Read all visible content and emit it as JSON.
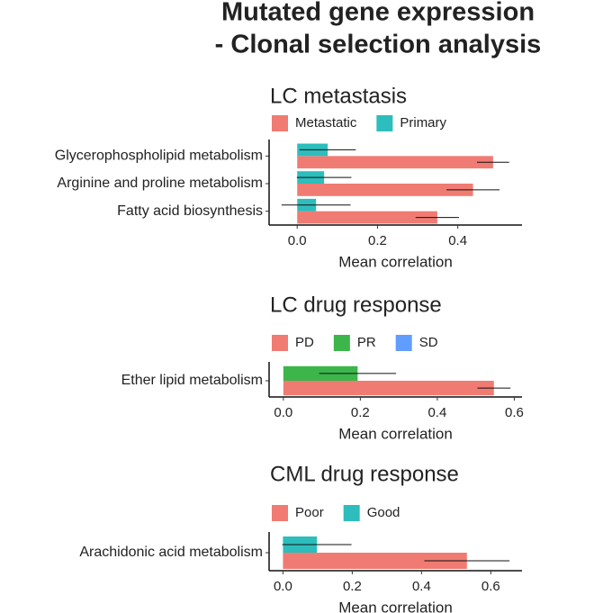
{
  "title": [
    "Mutated gene expression",
    "- Clonal selection analysis"
  ],
  "chart_data": [
    {
      "type": "bar",
      "orientation": "horizontal",
      "title": "LC metastasis",
      "categories": [
        "Glycerophospholipid metabolism",
        "Arginine and proline metabolism",
        "Fatty acid biosynthesis"
      ],
      "series": [
        {
          "name": "Metastatic",
          "color": "#f07b72",
          "values": [
            0.488,
            0.438,
            0.349
          ],
          "errors": [
            0.04,
            0.066,
            0.054
          ]
        },
        {
          "name": "Primary",
          "color": "#2dbdbd",
          "values": [
            0.076,
            0.067,
            0.047
          ],
          "errors": [
            0.07,
            0.068,
            0.086
          ]
        }
      ],
      "xlim": [
        -0.07,
        0.56
      ],
      "xticks": [
        {
          "value": 0,
          "label": "0.0"
        },
        0.2,
        0.4
      ],
      "xlabel": "Mean correlation"
    },
    {
      "type": "bar",
      "orientation": "horizontal",
      "title": "LC drug response",
      "categories": [
        "Ether lipid metabolism"
      ],
      "series": [
        {
          "name": "PD",
          "color": "#f07b72",
          "values": [
            0.547
          ],
          "errors": [
            0.043
          ]
        },
        {
          "name": "PR",
          "color": "#3cb54a",
          "values": [
            0.193
          ],
          "errors": [
            0.1
          ]
        },
        {
          "name": "SD",
          "color": "#619cff",
          "values": [
            null
          ],
          "errors": [
            null
          ]
        }
      ],
      "xlim": [
        -0.037,
        0.62
      ],
      "xticks": [
        {
          "value": 0,
          "label": "0.0"
        },
        0.2,
        0.4,
        0.6
      ],
      "xlabel": "Mean correlation"
    },
    {
      "type": "bar",
      "orientation": "horizontal",
      "title": "CML drug response",
      "categories": [
        "Arachidonic acid metabolism"
      ],
      "series": [
        {
          "name": "Poor",
          "color": "#f07b72",
          "values": [
            0.531
          ],
          "errors": [
            0.123
          ]
        },
        {
          "name": "Good",
          "color": "#2dbdbd",
          "values": [
            0.098
          ],
          "errors": [
            0.1
          ]
        }
      ],
      "xlim": [
        -0.04,
        0.69
      ],
      "xticks": [
        {
          "value": 0,
          "label": "0.0"
        },
        0.2,
        0.4,
        0.6
      ],
      "xlabel": "Mean correlation"
    }
  ]
}
